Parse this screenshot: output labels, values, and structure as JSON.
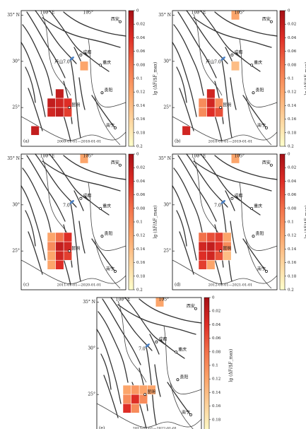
{
  "chart_data": {
    "type": "grid-map",
    "lonlim": [
      96.8,
      109.6
    ],
    "latlim": [
      20.8,
      35.5
    ],
    "lonticks": [
      {
        "value": 100,
        "label": "100° E"
      },
      {
        "value": 105,
        "label": "105°"
      }
    ],
    "latticks": [
      {
        "value": 35,
        "label": "35° N"
      },
      {
        "value": 30,
        "label": "30°"
      },
      {
        "value": 25,
        "label": "25°"
      }
    ],
    "colorbar": {
      "label": "lg (ΔF/ΔF_max)",
      "lim": [
        0,
        0.2
      ],
      "ticks": [
        0,
        0.02,
        0.04,
        0.06,
        0.08,
        0.1,
        0.12,
        0.14,
        0.16,
        0.18,
        0.2
      ],
      "colors": [
        "#a50f15",
        "#de2d26",
        "#f2714a",
        "#fca56b",
        "#fdd49e",
        "#ffffcc"
      ]
    },
    "cities": [
      {
        "name": "西安",
        "lon": 108.9,
        "lat": 34.3
      },
      {
        "name": "成都",
        "lon": 104.1,
        "lat": 30.7
      },
      {
        "name": "重庆",
        "lon": 106.5,
        "lat": 29.6
      },
      {
        "name": "贵阳",
        "lon": 106.7,
        "lat": 26.6
      },
      {
        "name": "昆明",
        "lon": 102.7,
        "lat": 25.0
      },
      {
        "name": "南宁",
        "lon": 108.3,
        "lat": 22.8
      }
    ],
    "event": {
      "lon": 103.0,
      "lat": 30.3
    },
    "panels": [
      {
        "label": "(a)",
        "period": "2009-01-01—2018-01-01",
        "event_label": "芦山7.0",
        "cells": [
          {
            "lon": 104,
            "lat": 29,
            "value": 0.12
          },
          {
            "lon": 101,
            "lat": 26,
            "value": 0.02
          },
          {
            "lon": 100,
            "lat": 25,
            "value": 0.02
          },
          {
            "lon": 101,
            "lat": 25,
            "value": 0.03
          },
          {
            "lon": 102,
            "lat": 25,
            "value": 0.04
          },
          {
            "lon": 100,
            "lat": 24,
            "value": 0.03
          },
          {
            "lon": 101,
            "lat": 24,
            "value": 0.02
          },
          {
            "lon": 102,
            "lat": 24,
            "value": 0.05
          },
          {
            "lon": 98,
            "lat": 22,
            "value": 0.02
          }
        ]
      },
      {
        "label": "(b)",
        "period": "2010-01-01—2019-01-01",
        "event_label": "芦山7.0",
        "cells": [
          {
            "lon": 104,
            "lat": 34.5,
            "value": 0.12
          },
          {
            "lon": 104,
            "lat": 29,
            "value": 0.14
          },
          {
            "lon": 101,
            "lat": 26,
            "value": 0.03
          },
          {
            "lon": 100,
            "lat": 25,
            "value": 0.1
          },
          {
            "lon": 101,
            "lat": 25,
            "value": 0.03
          },
          {
            "lon": 102,
            "lat": 25,
            "value": 0.1
          },
          {
            "lon": 100,
            "lat": 24,
            "value": 0.1
          },
          {
            "lon": 101,
            "lat": 24,
            "value": 0.04
          },
          {
            "lon": 102,
            "lat": 24,
            "value": 0.06
          },
          {
            "lon": 98,
            "lat": 22,
            "value": 0.03
          }
        ]
      },
      {
        "label": "(c)",
        "period": "2011-01-01—2020-01-01",
        "event_label": "7.0",
        "cells": [
          {
            "lon": 104,
            "lat": 34.5,
            "value": 0.12
          },
          {
            "lon": 100,
            "lat": 26,
            "value": 0.12
          },
          {
            "lon": 101,
            "lat": 26,
            "value": 0.08
          },
          {
            "lon": 102,
            "lat": 26,
            "value": 0.04
          },
          {
            "lon": 100,
            "lat": 25,
            "value": 0.1
          },
          {
            "lon": 101,
            "lat": 25,
            "value": 0.02
          },
          {
            "lon": 102,
            "lat": 25,
            "value": 0.03
          },
          {
            "lon": 100,
            "lat": 24,
            "value": 0.12
          },
          {
            "lon": 101,
            "lat": 24,
            "value": 0.03
          },
          {
            "lon": 102,
            "lat": 24,
            "value": 0.05
          },
          {
            "lon": 100,
            "lat": 23,
            "value": 0.12
          },
          {
            "lon": 101,
            "lat": 23,
            "value": 0.04
          }
        ]
      },
      {
        "label": "(d)",
        "period": "2012-01-01—2021-01-01",
        "event_label": "7.0",
        "cells": [
          {
            "lon": 104,
            "lat": 34.5,
            "value": 0.12
          },
          {
            "lon": 100,
            "lat": 26,
            "value": 0.08
          },
          {
            "lon": 101,
            "lat": 26,
            "value": 0.06
          },
          {
            "lon": 102,
            "lat": 26,
            "value": 0.05
          },
          {
            "lon": 103,
            "lat": 26,
            "value": 0.12
          },
          {
            "lon": 100,
            "lat": 25,
            "value": 0.03
          },
          {
            "lon": 101,
            "lat": 25,
            "value": 0.02
          },
          {
            "lon": 102,
            "lat": 25,
            "value": 0.04
          },
          {
            "lon": 103,
            "lat": 25,
            "value": 0.1
          },
          {
            "lon": 100,
            "lat": 24,
            "value": 0.04
          },
          {
            "lon": 101,
            "lat": 24,
            "value": 0.03
          },
          {
            "lon": 102,
            "lat": 24,
            "value": 0.06
          },
          {
            "lon": 103,
            "lat": 24,
            "value": 0.14
          },
          {
            "lon": 100,
            "lat": 23,
            "value": 0.05
          },
          {
            "lon": 101,
            "lat": 23,
            "value": 0.12
          }
        ]
      },
      {
        "label": "(e)",
        "period": "2013-01-01—2022-01-01",
        "event_label": "7.0",
        "cells": [
          {
            "lon": 104,
            "lat": 34.5,
            "value": 0.12
          },
          {
            "lon": 100,
            "lat": 25,
            "value": 0.12
          },
          {
            "lon": 101,
            "lat": 25,
            "value": 0.11
          },
          {
            "lon": 102,
            "lat": 25,
            "value": 0.12
          },
          {
            "lon": 103,
            "lat": 25,
            "value": 0.12
          },
          {
            "lon": 100,
            "lat": 24,
            "value": 0.1
          },
          {
            "lon": 101,
            "lat": 24,
            "value": 0.04
          },
          {
            "lon": 102,
            "lat": 24,
            "value": 0.1
          },
          {
            "lon": 100,
            "lat": 23,
            "value": 0.04
          },
          {
            "lon": 101,
            "lat": 23,
            "value": 0.1
          }
        ]
      }
    ]
  }
}
